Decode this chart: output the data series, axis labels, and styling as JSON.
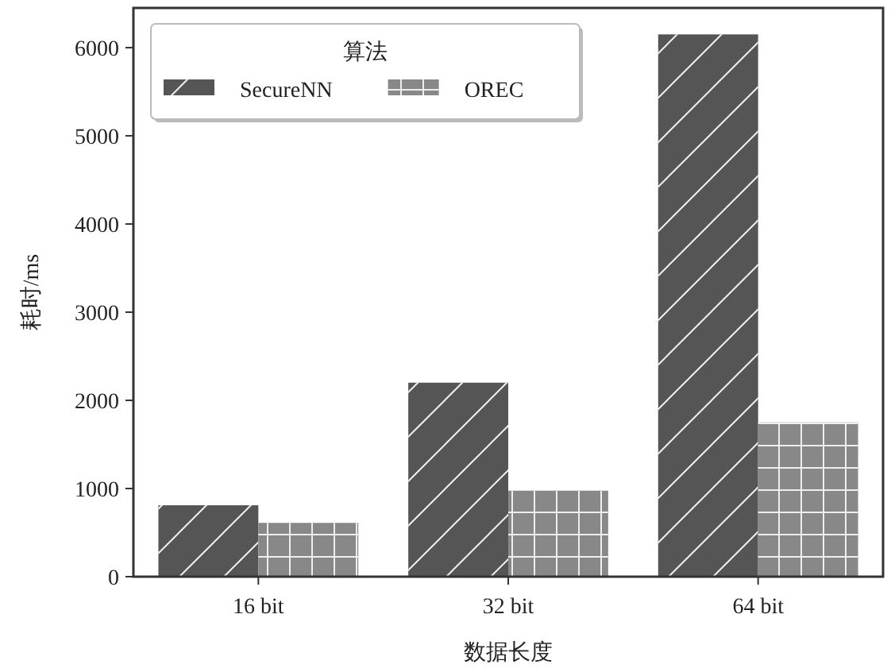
{
  "chart_data": {
    "type": "bar",
    "xlabel": "数据长度",
    "ylabel": "耗时/ms",
    "legend_title": "算法",
    "legend": "top left",
    "categories": [
      "16 bit",
      "32 bit",
      "64 bit"
    ],
    "series": [
      {
        "name": "SecureNN",
        "color": "#555555",
        "values": [
          810,
          2200,
          6150
        ]
      },
      {
        "name": "OREC",
        "color": "#888888",
        "values": [
          610,
          980,
          1750
        ]
      }
    ],
    "ylim": [
      0,
      6450
    ],
    "yticks": [
      0,
      1000,
      2000,
      3000,
      4000,
      5000,
      6000
    ]
  }
}
